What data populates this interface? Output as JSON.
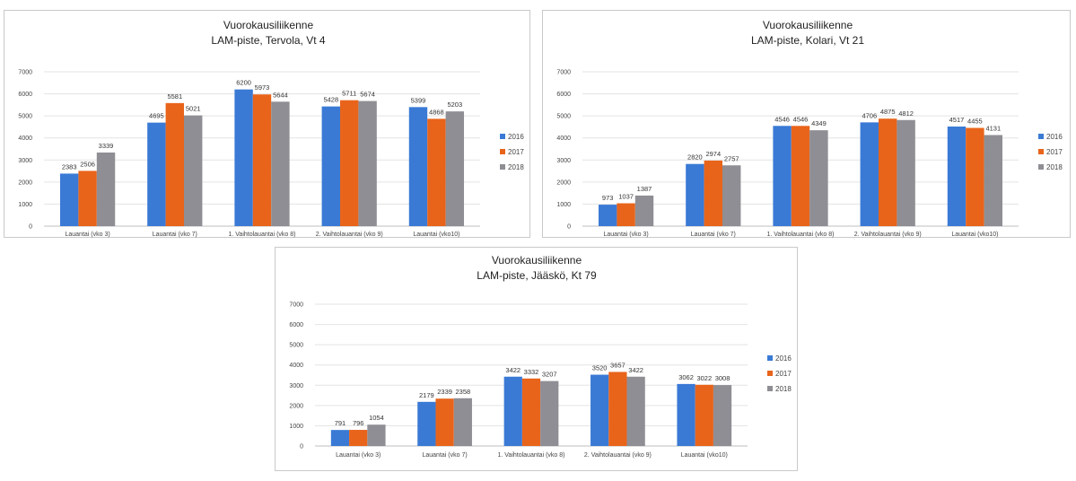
{
  "chart_data": [
    {
      "type": "bar",
      "title": "Vuorokausiliikenne",
      "subtitle": "LAM-piste, Tervola, Vt 4",
      "xlabel": "",
      "ylabel": "",
      "ylim": [
        0,
        7000
      ],
      "yticks": [
        "0",
        "1000",
        "2000",
        "3000",
        "4000",
        "5000",
        "6000",
        "7000"
      ],
      "categories": [
        "Lauantai (vko 3)",
        "Lauantai (vko 7)",
        "1. Vaihtolauantai (vko 8)",
        "2. Vaihtolauantai (vko 9)",
        "Lauantai (vko10)"
      ],
      "series": [
        {
          "name": "2016",
          "color": "#3a7ad5",
          "values": [
            2383,
            4695,
            6200,
            5428,
            5399
          ]
        },
        {
          "name": "2017",
          "color": "#e8641b",
          "values": [
            2506,
            5581,
            5973,
            5711,
            4868
          ]
        },
        {
          "name": "2018",
          "color": "#8e8e94",
          "values": [
            3339,
            5021,
            5644,
            5674,
            5203
          ]
        }
      ],
      "legend": "right"
    },
    {
      "type": "bar",
      "title": "Vuorokausiliikenne",
      "subtitle": "LAM-piste, Kolari, Vt 21",
      "xlabel": "",
      "ylabel": "",
      "ylim": [
        0,
        7000
      ],
      "yticks": [
        "0",
        "1000",
        "2000",
        "3000",
        "4000",
        "5000",
        "6000",
        "7000"
      ],
      "categories": [
        "Lauantai (vko 3)",
        "Lauantai (vko 7)",
        "1. Vaihtolauantai (vko 8)",
        "2. Vaihtolauantai (vko 9)",
        "Lauantai (vko10)"
      ],
      "series": [
        {
          "name": "2016",
          "color": "#3a7ad5",
          "values": [
            973,
            2820,
            4546,
            4706,
            4517
          ]
        },
        {
          "name": "2017",
          "color": "#e8641b",
          "values": [
            1037,
            2974,
            4546,
            4875,
            4455
          ]
        },
        {
          "name": "2018",
          "color": "#8e8e94",
          "values": [
            1387,
            2757,
            4349,
            4812,
            4131
          ]
        }
      ],
      "legend": "right"
    },
    {
      "type": "bar",
      "title": "Vuorokausiliikenne",
      "subtitle": "LAM-piste, Jääskö, Kt 79",
      "xlabel": "",
      "ylabel": "",
      "ylim": [
        0,
        7000
      ],
      "yticks": [
        "0",
        "1000",
        "2000",
        "3000",
        "4000",
        "5000",
        "6000",
        "7000"
      ],
      "categories": [
        "Lauantai (vko 3)",
        "Lauantai (vko 7)",
        "1. Vaihtolauantai (vko 8)",
        "2. Vaihtolauantai (vko 9)",
        "Lauantai (vko10)"
      ],
      "series": [
        {
          "name": "2016",
          "color": "#3a7ad5",
          "values": [
            791,
            2179,
            3422,
            3520,
            3062
          ]
        },
        {
          "name": "2017",
          "color": "#e8641b",
          "values": [
            796,
            2339,
            3332,
            3657,
            3022
          ]
        },
        {
          "name": "2018",
          "color": "#8e8e94",
          "values": [
            1054,
            2358,
            3207,
            3422,
            3008
          ]
        }
      ],
      "legend": "right"
    }
  ]
}
